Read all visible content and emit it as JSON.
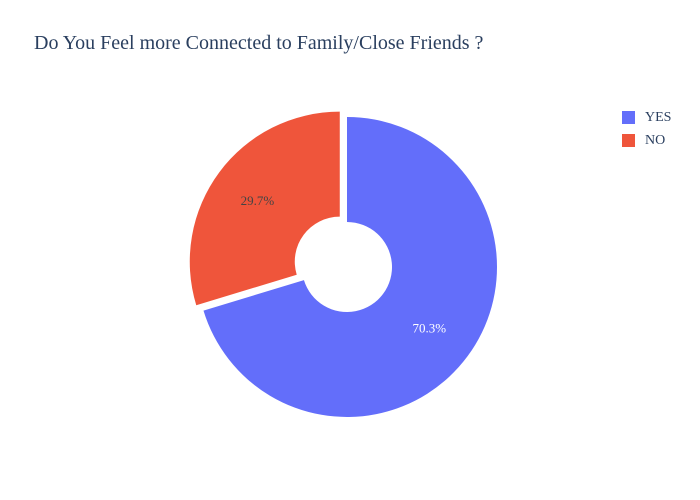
{
  "chart_data": {
    "type": "pie",
    "title": "Do You Feel more Connected to Family/Close Friends ?",
    "hole": 0.3,
    "pull_label": "NO",
    "slices": [
      {
        "label": "YES",
        "value": 70.3,
        "text": "70.3%",
        "color": "#636efa",
        "text_color": "#ffffff"
      },
      {
        "label": "NO",
        "value": 29.7,
        "text": "29.7%",
        "color": "#ef553b",
        "text_color": "#444444"
      }
    ],
    "legend": {
      "placement": "top-right",
      "items": [
        "YES",
        "NO"
      ]
    }
  }
}
